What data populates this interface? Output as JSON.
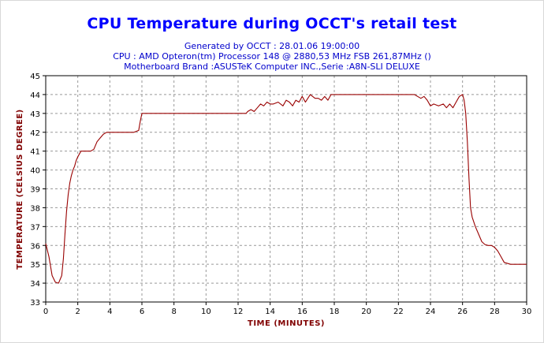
{
  "colors": {
    "background": "#ffffff",
    "title": "#0000ff",
    "subtitle": "#0000cc",
    "line": "#990000",
    "axis_label": "#800000",
    "grid": "#999999",
    "plot_border": "#000000"
  },
  "chart_data": {
    "type": "line",
    "title": "CPU Temperature during OCCT's retail test",
    "subtitle_lines": [
      "Generated by OCCT : 28.01.06 19:00:00",
      "CPU : AMD Opteron(tm) Processor 148    @ 2880,53 MHz FSB 261,87MHz ()",
      "Motherboard Brand :ASUSTeK Computer INC.,Serie :A8N-SLI DELUXE"
    ],
    "xlabel": "TIME (MINUTES)",
    "ylabel": "TEMPERATURE (CELSIUS DEGREE)",
    "xlim": [
      0,
      30
    ],
    "ylim": [
      33,
      45
    ],
    "xticks": [
      0,
      2,
      4,
      6,
      8,
      10,
      12,
      14,
      16,
      18,
      20,
      22,
      24,
      26,
      28,
      30
    ],
    "yticks": [
      33,
      34,
      35,
      36,
      37,
      38,
      39,
      40,
      41,
      42,
      43,
      44,
      45
    ],
    "grid": true,
    "series": [
      {
        "x": [
          0,
          0.2,
          0.4,
          0.6,
          0.8,
          1.0,
          1.1,
          1.2,
          1.3,
          1.4,
          1.5,
          1.6,
          1.7,
          1.8,
          1.9,
          2.0,
          2.2,
          2.4,
          2.6,
          2.8,
          3.0,
          3.2,
          3.4,
          3.6,
          3.8,
          4.0,
          4.5,
          5.0,
          5.5,
          5.8,
          5.9,
          6.0,
          6.2,
          7.0,
          8.0,
          9.0,
          10.0,
          11.0,
          12.0,
          12.5,
          12.6,
          12.8,
          13.0,
          13.2,
          13.4,
          13.6,
          13.8,
          14.0,
          14.2,
          14.5,
          14.8,
          15.0,
          15.2,
          15.4,
          15.6,
          15.8,
          16.0,
          16.2,
          16.5,
          16.8,
          17.0,
          17.2,
          17.4,
          17.6,
          17.8,
          18.0,
          19.0,
          20.0,
          21.0,
          22.0,
          23.0,
          23.2,
          23.4,
          23.6,
          23.8,
          24.0,
          24.2,
          24.5,
          24.8,
          25.0,
          25.2,
          25.4,
          25.6,
          25.8,
          26.0,
          26.1,
          26.2,
          26.3,
          26.4,
          26.5,
          26.6,
          26.8,
          27.0,
          27.2,
          27.4,
          27.6,
          27.8,
          28.0,
          28.2,
          28.4,
          28.6,
          29.0,
          29.5,
          30.0
        ],
        "y": [
          36.1,
          35.4,
          34.4,
          34.05,
          34.0,
          34.4,
          35.3,
          36.6,
          37.8,
          38.7,
          39.3,
          39.7,
          40.0,
          40.2,
          40.5,
          40.7,
          41.0,
          41.0,
          41.0,
          41.0,
          41.1,
          41.5,
          41.7,
          41.9,
          42.0,
          42.0,
          42.0,
          42.0,
          42.0,
          42.1,
          42.6,
          43.0,
          43.0,
          43.0,
          43.0,
          43.0,
          43.0,
          43.0,
          43.0,
          43.0,
          43.1,
          43.2,
          43.1,
          43.3,
          43.5,
          43.4,
          43.6,
          43.5,
          43.5,
          43.6,
          43.4,
          43.7,
          43.6,
          43.4,
          43.7,
          43.6,
          43.9,
          43.6,
          44.0,
          43.8,
          43.8,
          43.7,
          43.9,
          43.7,
          44.0,
          44.0,
          44.0,
          44.0,
          44.0,
          44.0,
          44.0,
          43.9,
          43.8,
          43.9,
          43.7,
          43.4,
          43.5,
          43.4,
          43.5,
          43.3,
          43.5,
          43.3,
          43.6,
          43.9,
          44.0,
          43.7,
          43.0,
          41.5,
          39.6,
          38.0,
          37.5,
          37.0,
          36.6,
          36.2,
          36.05,
          36.0,
          36.0,
          35.9,
          35.7,
          35.4,
          35.1,
          35.0,
          35.0,
          35.0
        ]
      }
    ]
  }
}
